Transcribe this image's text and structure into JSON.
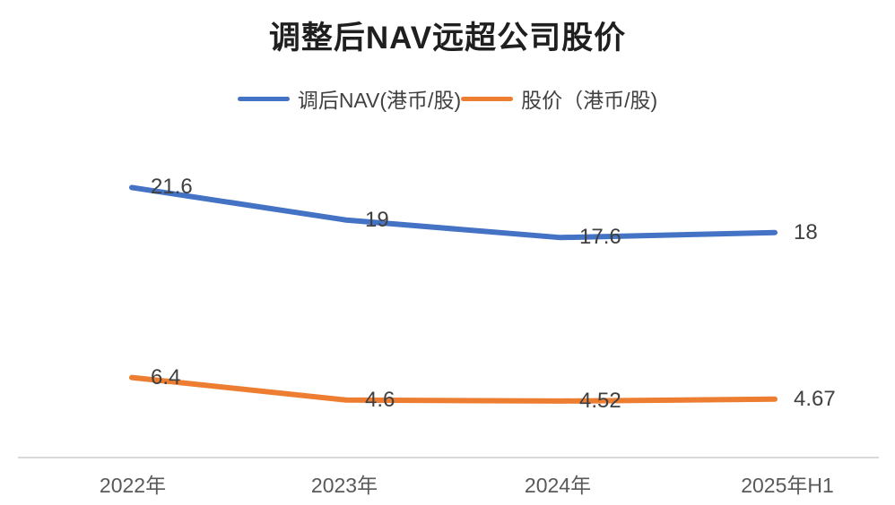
{
  "title": "调整后NAV远超公司股价",
  "chart_data": {
    "type": "line",
    "categories": [
      "2022年",
      "2023年",
      "2024年",
      "2025年H1"
    ],
    "series": [
      {
        "name": "调后NAV(港币/股)",
        "color": "#4472C4",
        "values": [
          21.6,
          19,
          17.6,
          18
        ]
      },
      {
        "name": "股价（港币/股)",
        "color": "#ED7D31",
        "values": [
          6.4,
          4.6,
          4.52,
          4.67
        ]
      }
    ],
    "ylim": [
      0,
      25
    ],
    "grid": false,
    "legend_position": "top",
    "data_labels_position": "right",
    "axis_line_color": "#D9D9D9",
    "data_label_color": "#404040",
    "tick_label_color": "#595959",
    "title_color": "#1f1f1f"
  }
}
